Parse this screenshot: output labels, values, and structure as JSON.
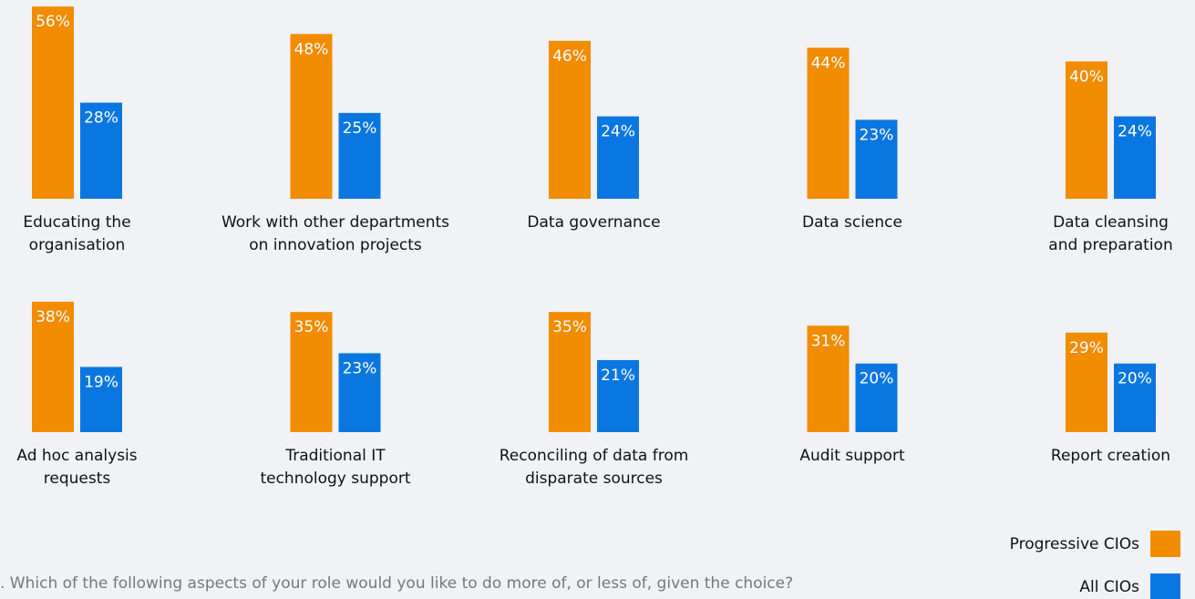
{
  "chart_data": {
    "type": "bar",
    "categories": [
      "Educating the\norganisation",
      "Work with other departments\non innovation projects",
      "Data governance",
      "Data science",
      "Data cleansing\nand preparation",
      "Ad hoc analysis\nrequests",
      "Traditional IT\ntechnology support",
      "Reconciling of data from\ndisparate sources",
      "Audit support",
      "Report creation"
    ],
    "series": [
      {
        "name": "Progressive CIOs",
        "color": "#f28c00",
        "values": [
          56,
          48,
          46,
          44,
          40,
          38,
          35,
          35,
          31,
          29
        ],
        "value_labels": [
          "56%",
          "48%",
          "46%",
          "44%",
          "40%",
          "38%",
          "35%",
          "35%",
          "31%",
          "29%"
        ]
      },
      {
        "name": "All CIOs",
        "color": "#0a77e0",
        "values": [
          28,
          25,
          24,
          23,
          24,
          19,
          23,
          21,
          20,
          20
        ],
        "value_labels": [
          "28%",
          "25%",
          "24%",
          "23%",
          "24%",
          "19%",
          "23%",
          "21%",
          "20%",
          "20%"
        ]
      }
    ],
    "footnote": ". Which of the following aspects of your role would you like to do more of, or less of, given the choice?",
    "legend": "bottom-right"
  }
}
